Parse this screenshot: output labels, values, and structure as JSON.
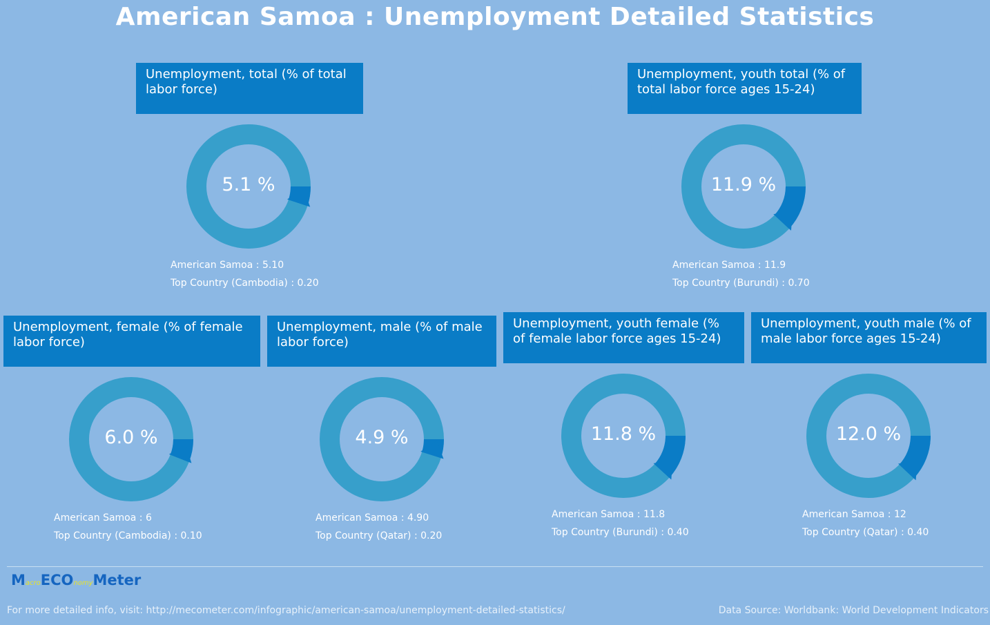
{
  "title": "American Samoa : Unemployment Detailed Statistics",
  "colors": {
    "background": "#8cb8e4",
    "ring": "#379fcb",
    "value_segment": "#0a7cc6",
    "header": "#0a7cc6"
  },
  "chart_data": [
    {
      "type": "pie",
      "title": "Unemployment, total (% of total labor force)",
      "value": 5.1,
      "center_label": "5.1 %",
      "country_label": "American Samoa : 5.10",
      "top_label": "Top Country (Cambodia) : 0.20"
    },
    {
      "type": "pie",
      "title": "Unemployment, youth total (% of total labor force ages 15-24)",
      "value": 11.9,
      "center_label": "11.9 %",
      "country_label": "American Samoa : 11.9",
      "top_label": "Top Country (Burundi) : 0.70"
    },
    {
      "type": "pie",
      "title": "Unemployment, female (% of female labor force)",
      "value": 6.0,
      "center_label": "6.0 %",
      "country_label": "American Samoa : 6",
      "top_label": "Top Country (Cambodia) : 0.10"
    },
    {
      "type": "pie",
      "title": "Unemployment, male (% of male labor force)",
      "value": 4.9,
      "center_label": "4.9 %",
      "country_label": "American Samoa : 4.90",
      "top_label": "Top Country (Qatar) : 0.20"
    },
    {
      "type": "pie",
      "title": "Unemployment, youth female (% of female labor force ages 15-24)",
      "value": 11.8,
      "center_label": "11.8 %",
      "country_label": "American Samoa : 11.8",
      "top_label": "Top Country (Burundi) : 0.40"
    },
    {
      "type": "pie",
      "title": "Unemployment, youth male (% of male labor force ages 15-24)",
      "value": 12.0,
      "center_label": "12.0 %",
      "country_label": "American Samoa : 12",
      "top_label": "Top Country (Qatar) : 0.40"
    }
  ],
  "footer": {
    "logo_m": "M",
    "logo_acro": "acro",
    "logo_eco": "ECO",
    "logo_nomy": "nomy",
    "logo_meter": "Meter",
    "info": "For more detailed info, visit: http://mecometer.com/infographic/american-samoa/unemployment-detailed-statistics/",
    "source": "Data Source: Worldbank: World Development Indicators"
  }
}
